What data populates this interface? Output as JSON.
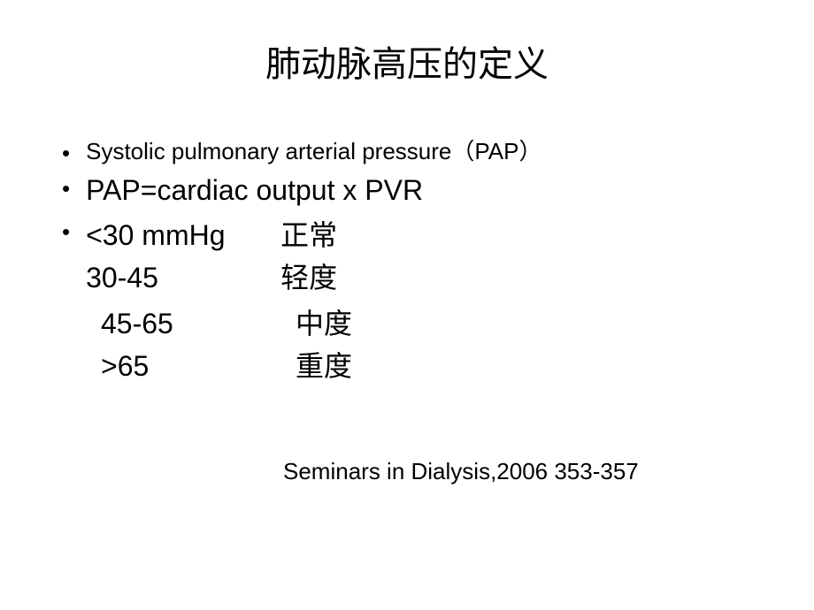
{
  "slide": {
    "title": "肺动脉高压的定义",
    "bullets": {
      "line1": "Systolic pulmonary arterial pressure（PAP）",
      "line2": "PAP=cardiac output x PVR"
    },
    "ranges": {
      "r1_range": "<30 mmHg",
      "r1_label": "正常",
      "r2_range": "30-45",
      "r2_label": "轻度",
      "r3_range": "45-65",
      "r3_label": "中度",
      "r4_range": ">65",
      "r4_label": "重度"
    },
    "citation": "Seminars in Dialysis,2006 353-357"
  },
  "style": {
    "background_color": "#ffffff",
    "text_color": "#000000",
    "title_fontsize": 40,
    "body_fontsize_small": 26,
    "body_fontsize_large": 32,
    "citation_fontsize": 26
  }
}
